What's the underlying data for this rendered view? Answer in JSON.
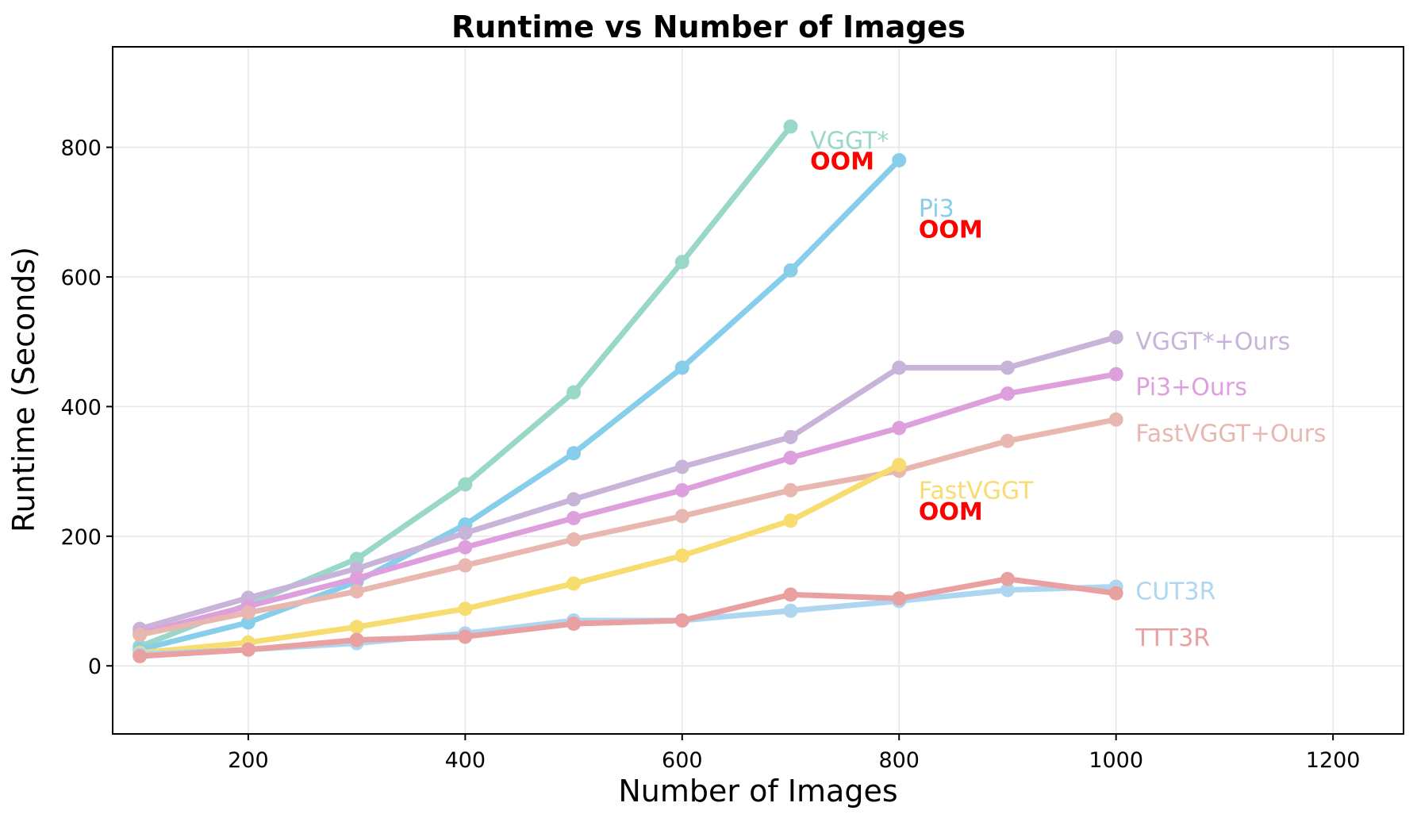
{
  "chart_data": {
    "type": "line",
    "title": "Runtime vs Number of Images",
    "xlabel": "Number of Images",
    "ylabel": "Runtime (Seconds)",
    "xlim": [
      75,
      1265
    ],
    "ylim": [
      -105,
      955
    ],
    "xticks": [
      200,
      400,
      600,
      800,
      1000,
      1200
    ],
    "yticks": [
      0,
      200,
      400,
      600,
      800
    ],
    "grid": true,
    "legend": "inline labels at line ends",
    "series": [
      {
        "name": "VGGT*",
        "color": "#99d8c9",
        "x": [
          100,
          200,
          300,
          400,
          500,
          600,
          700
        ],
        "values": [
          30,
          95,
          165,
          280,
          422,
          623,
          832
        ],
        "oom": true
      },
      {
        "name": "Pi3",
        "color": "#87ceeb",
        "x": [
          100,
          200,
          300,
          400,
          500,
          600,
          700,
          800
        ],
        "values": [
          25,
          67,
          130,
          218,
          328,
          460,
          610,
          780
        ],
        "oom": true
      },
      {
        "name": "VGGT*+Ours",
        "color": "#c8b4d8",
        "x": [
          100,
          200,
          300,
          400,
          500,
          600,
          700,
          800,
          900,
          1000
        ],
        "values": [
          57,
          105,
          150,
          205,
          257,
          307,
          353,
          460,
          460,
          507
        ],
        "oom": false
      },
      {
        "name": "Pi3+Ours",
        "color": "#dda0dd",
        "x": [
          100,
          200,
          300,
          400,
          500,
          600,
          700,
          800,
          900,
          1000
        ],
        "values": [
          50,
          92,
          135,
          183,
          228,
          271,
          321,
          367,
          420,
          450
        ],
        "oom": false
      },
      {
        "name": "FastVGGT+Ours",
        "color": "#e8b8b0",
        "x": [
          100,
          200,
          300,
          400,
          500,
          600,
          700,
          800,
          900,
          1000
        ],
        "values": [
          48,
          82,
          115,
          155,
          195,
          231,
          271,
          301,
          347,
          380
        ],
        "oom": false
      },
      {
        "name": "FastVGGT",
        "color": "#f7dc6f",
        "x": [
          100,
          200,
          300,
          400,
          500,
          600,
          700,
          800
        ],
        "values": [
          20,
          36,
          60,
          88,
          127,
          170,
          224,
          310
        ],
        "oom": true
      },
      {
        "name": "CUT3R",
        "color": "#aed6f1",
        "x": [
          100,
          200,
          300,
          400,
          500,
          600,
          700,
          800,
          900,
          1000
        ],
        "values": [
          18,
          25,
          35,
          50,
          70,
          70,
          85,
          100,
          117,
          122
        ],
        "oom": false
      },
      {
        "name": "TTT3R",
        "color": "#e8a0a0",
        "x": [
          100,
          200,
          300,
          400,
          500,
          600,
          700,
          800,
          900,
          1000
        ],
        "values": [
          15,
          25,
          40,
          45,
          65,
          70,
          110,
          104,
          134,
          112
        ],
        "oom": false
      }
    ],
    "annotations": [
      {
        "text": "VGGT*",
        "series": "VGGT*",
        "x": 718,
        "y": 810
      },
      {
        "text": "OOM",
        "series": "VGGT*",
        "x": 718,
        "y": 778
      },
      {
        "text": "Pi3",
        "series": "Pi3",
        "x": 818,
        "y": 705
      },
      {
        "text": "OOM",
        "series": "Pi3",
        "x": 818,
        "y": 673
      },
      {
        "text": "VGGT*+Ours",
        "series": "VGGT*+Ours",
        "x": 1018,
        "y": 500
      },
      {
        "text": "Pi3+Ours",
        "series": "Pi3+Ours",
        "x": 1018,
        "y": 430
      },
      {
        "text": "FastVGGT+Ours",
        "series": "FastVGGT+Ours",
        "x": 1018,
        "y": 358
      },
      {
        "text": "FastVGGT",
        "series": "FastVGGT",
        "x": 818,
        "y": 270
      },
      {
        "text": "OOM",
        "series": "FastVGGT",
        "x": 818,
        "y": 238
      },
      {
        "text": "CUT3R",
        "series": "CUT3R",
        "x": 1018,
        "y": 115
      },
      {
        "text": "TTT3R",
        "series": "TTT3R",
        "x": 1018,
        "y": 43
      }
    ]
  },
  "oom_color": "#ff0000"
}
